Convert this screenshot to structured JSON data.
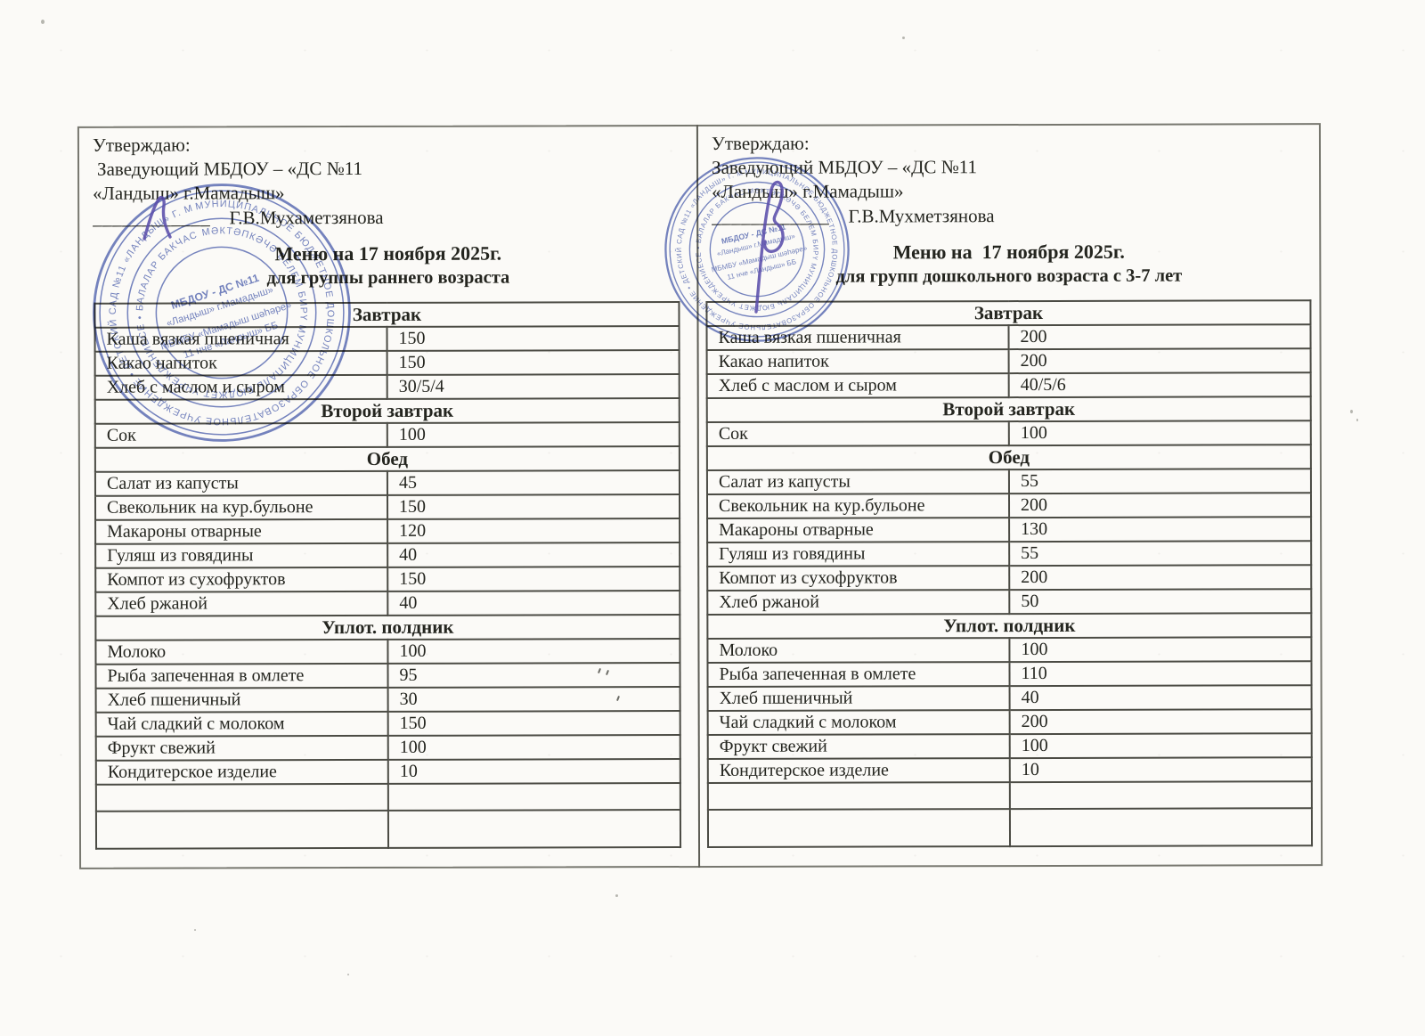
{
  "colors": {
    "paper": "#fbfaf7",
    "ink": "#24251f",
    "table_line": "#4b4b44",
    "frame_line": "#77776f",
    "stamp_blue": "#4f63b2",
    "signature_purple": "#5a4dab"
  },
  "left": {
    "approve": {
      "line1": "Утверждаю:",
      "line2": "Заведующий МБДОУ – «ДС №11",
      "line3": "«Ландыш» г.Мамадыш»",
      "sign_line": "____________",
      "name": "Г.В.Мухаметзянова"
    },
    "title": "Меню на 17 ноября 2025г.",
    "subtitle": "для группы раннего возраста",
    "menu": {
      "sections": [
        {
          "header": "Завтрак",
          "rows": [
            [
              "Каша вязкая пшеничная",
              "150"
            ],
            [
              "Какао напиток",
              "150"
            ],
            [
              "Хлеб с маслом и сыром",
              "30/5/4"
            ]
          ]
        },
        {
          "header": "Второй завтрак",
          "rows": [
            [
              "Сок",
              "100"
            ]
          ]
        },
        {
          "header": "Обед",
          "rows": [
            [
              "Салат из капусты",
              "45"
            ],
            [
              "Свекольник на кур.бульоне",
              "150"
            ],
            [
              "Макароны отварные",
              "120"
            ],
            [
              "Гуляш из говядины",
              "40"
            ],
            [
              "Компот из сухофруктов",
              "150"
            ],
            [
              "Хлеб ржаной",
              "40"
            ]
          ]
        },
        {
          "header": "Уплот. полдник",
          "rows": [
            [
              "Молоко",
              "100"
            ],
            [
              "Рыба запеченная в омлете",
              "95"
            ],
            [
              "Хлеб пшеничный",
              "30"
            ],
            [
              "Чай сладкий с молоком",
              "150"
            ],
            [
              "Фрукт свежий",
              "100"
            ],
            [
              "Кондитерское изделие",
              "10"
            ],
            [
              "",
              ""
            ],
            [
              "",
              ""
            ]
          ]
        }
      ]
    }
  },
  "right": {
    "approve": {
      "line1": "Утверждаю:",
      "line2": "Заведующий МБДОУ – «ДС №11",
      "line3": "«Ландыш» г.Мамадыш»",
      "sign_line": "____________",
      "name": "Г.В.Мухметзянова"
    },
    "title": "Меню на  17 ноября 2025г.",
    "subtitle": "для групп дошкольного возраста с 3-7 лет",
    "menu": {
      "sections": [
        {
          "header": "Завтрак",
          "rows": [
            [
              "Каша вязкая пшеничная",
              "200"
            ],
            [
              "Какао напиток",
              "200"
            ],
            [
              "Хлеб с маслом и сыром",
              "40/5/6"
            ]
          ]
        },
        {
          "header": "Второй завтрак",
          "rows": [
            [
              "Сок",
              "100"
            ]
          ]
        },
        {
          "header": "Обед",
          "rows": [
            [
              "Салат из капусты",
              "55"
            ],
            [
              "Свекольник на кур.бульоне",
              "200"
            ],
            [
              "Макароны отварные",
              "130"
            ],
            [
              "Гуляш из говядины",
              "55"
            ],
            [
              "Компот из сухофруктов",
              "200"
            ],
            [
              "Хлеб ржаной",
              "50"
            ]
          ]
        },
        {
          "header": "Уплот. полдник",
          "rows": [
            [
              "Молоко",
              "100"
            ],
            [
              "Рыба запеченная в омлете",
              "110"
            ],
            [
              "Хлеб пшеничный",
              "40"
            ],
            [
              "Чай сладкий с молоком",
              "200"
            ],
            [
              "Фрукт свежий",
              "100"
            ],
            [
              "Кондитерское изделие",
              "10"
            ],
            [
              "",
              ""
            ],
            [
              "",
              ""
            ]
          ]
        }
      ]
    }
  },
  "stamp": {
    "ring_outer": "МУНИЦИПАЛЬНОЕ БЮДЖЕТНОЕ ДОШКОЛЬНОЕ ОБРАЗОВАТЕЛЬНОЕ УЧРЕЖДЕНИЕ • ДЕТСКИЙ САД №11 «ЛАНДЫШ» Г. МАМАДЫШ РЕСПУБЛИКИ ТАТАРСТАН",
    "ring_inner": "МӘКТӘПКӘЧӘ БЕЛЕМ БИРҮ МУНИЦИПАЛЬ БЮДЖЕТ УЧРЕЖДЕНИЕСЕ • БАЛАЛАР БАКЧАСЫ • ОГРН 1621 • ИНН 1626005705",
    "inner_lines": [
      "МБДОУ - ДС №11",
      "«Ландыш» г.Мамадыш»",
      "МБМБУ «Мамадыш шәһәре»",
      "11 нче «Ландыш» ББ"
    ]
  }
}
